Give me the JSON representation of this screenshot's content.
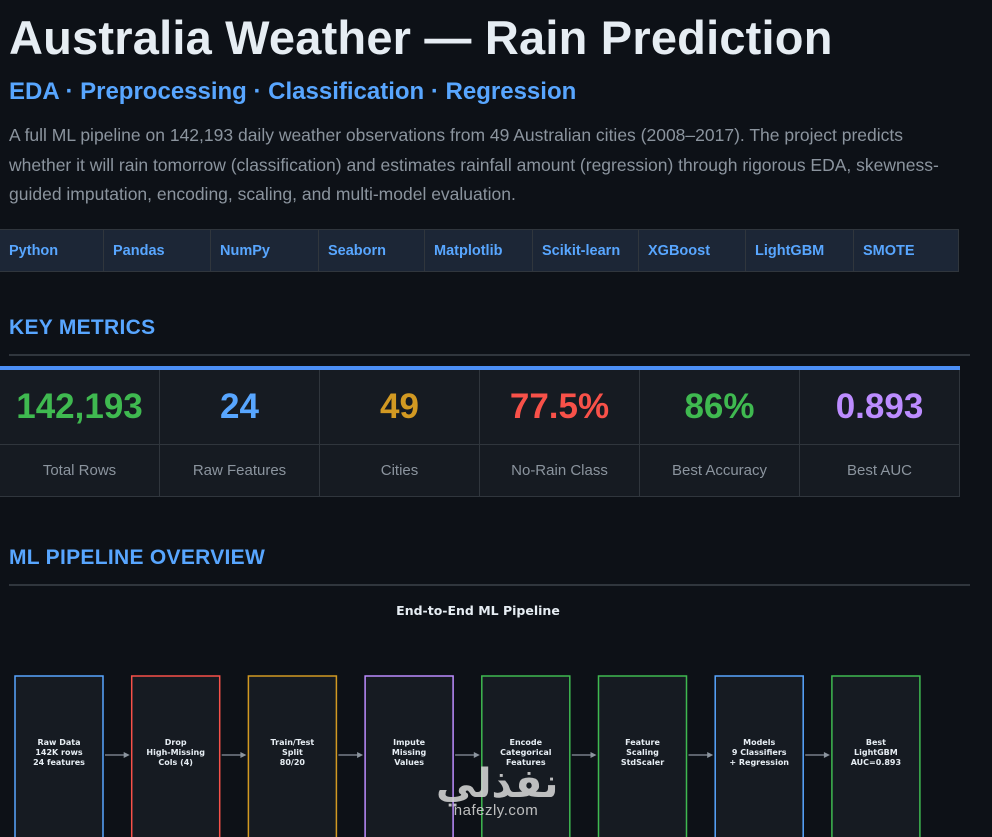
{
  "header": {
    "title": "Australia Weather — Rain Prediction",
    "subtitle": "EDA · Preprocessing · Classification · Regression",
    "description": "A full ML pipeline on 142,193 daily weather observations from 49 Australian cities (2008–2017). The project predicts whether it will rain tomorrow (classification) and estimates rainfall amount (regression) through rigorous EDA, skewness-guided imputation, encoding, scaling, and multi-model evaluation."
  },
  "tech_tags": [
    "Python",
    "Pandas",
    "NumPy",
    "Seaborn",
    "Matplotlib",
    "Scikit-learn",
    "XGBoost",
    "LightGBM",
    "SMOTE"
  ],
  "key_metrics": {
    "section_title": "KEY METRICS",
    "items": [
      {
        "value": "142,193",
        "label": "Total Rows",
        "color": "#3fb950"
      },
      {
        "value": "24",
        "label": "Raw Features",
        "color": "#58a6ff"
      },
      {
        "value": "49",
        "label": "Cities",
        "color": "#d29922"
      },
      {
        "value": "77.5%",
        "label": "No-Rain Class",
        "color": "#f85149"
      },
      {
        "value": "86%",
        "label": "Best Accuracy",
        "color": "#3fb950"
      },
      {
        "value": "0.893",
        "label": "Best AUC",
        "color": "#bc8cff"
      }
    ]
  },
  "pipeline": {
    "section_title": "ML PIPELINE OVERVIEW",
    "diagram_title": "End-to-End ML Pipeline",
    "steps": [
      {
        "lines": [
          "Raw Data",
          "142K rows",
          "24 features"
        ],
        "color": "#58a6ff"
      },
      {
        "lines": [
          "Drop",
          "High-Missing",
          "Cols (4)"
        ],
        "color": "#f85149"
      },
      {
        "lines": [
          "Train/Test",
          "Split",
          "80/20"
        ],
        "color": "#d29922"
      },
      {
        "lines": [
          "Impute",
          "Missing",
          "Values"
        ],
        "color": "#bc8cff"
      },
      {
        "lines": [
          "Encode",
          "Categorical",
          "Features"
        ],
        "color": "#3fb950"
      },
      {
        "lines": [
          "Feature",
          "Scaling",
          "StdScaler"
        ],
        "color": "#3fb950"
      },
      {
        "lines": [
          "Models",
          "9 Classifiers",
          "+ Regression"
        ],
        "color": "#58a6ff"
      },
      {
        "lines": [
          "Best",
          "LightGBM",
          "AUC=0.893"
        ],
        "color": "#3fb950"
      }
    ]
  },
  "watermark": {
    "arabic": "نفذلي",
    "latin": "nafezly.com"
  },
  "colors": {
    "background": "#0d1117",
    "accent": "#58a6ff",
    "panel": "#161b22",
    "border": "#30363d"
  }
}
